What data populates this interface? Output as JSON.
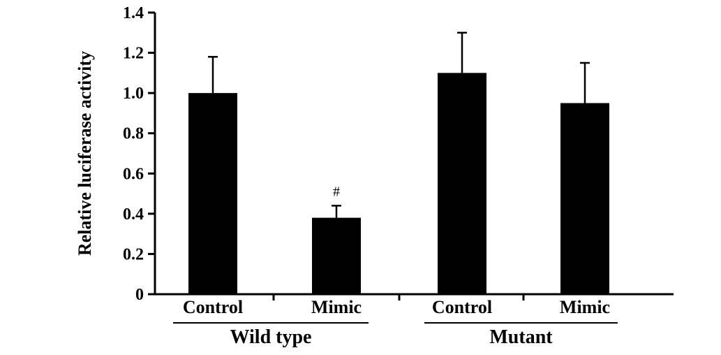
{
  "chart_data": {
    "type": "bar",
    "ylabel": "Relative luciferase activity",
    "ylim": [
      0,
      1.4
    ],
    "yticks": [
      0,
      0.2,
      0.4,
      0.6,
      0.8,
      1.0,
      1.2,
      1.4
    ],
    "ytick_labels": [
      "0",
      "0.2",
      "0.4",
      "0.6",
      "0.8",
      "1.0",
      "1.2",
      "1.4"
    ],
    "categories": [
      "Control",
      "Mimic",
      "Control",
      "Mimic"
    ],
    "groups": [
      {
        "label": "Wild type",
        "members": [
          0,
          1
        ]
      },
      {
        "label": "Mutant",
        "members": [
          2,
          3
        ]
      }
    ],
    "values": [
      1.0,
      0.38,
      1.1,
      0.95
    ],
    "errors": [
      0.18,
      0.06,
      0.2,
      0.2
    ],
    "annotations": [
      "",
      "#",
      "",
      ""
    ],
    "bar_color": "#000000",
    "grid": false,
    "legend": "none"
  }
}
